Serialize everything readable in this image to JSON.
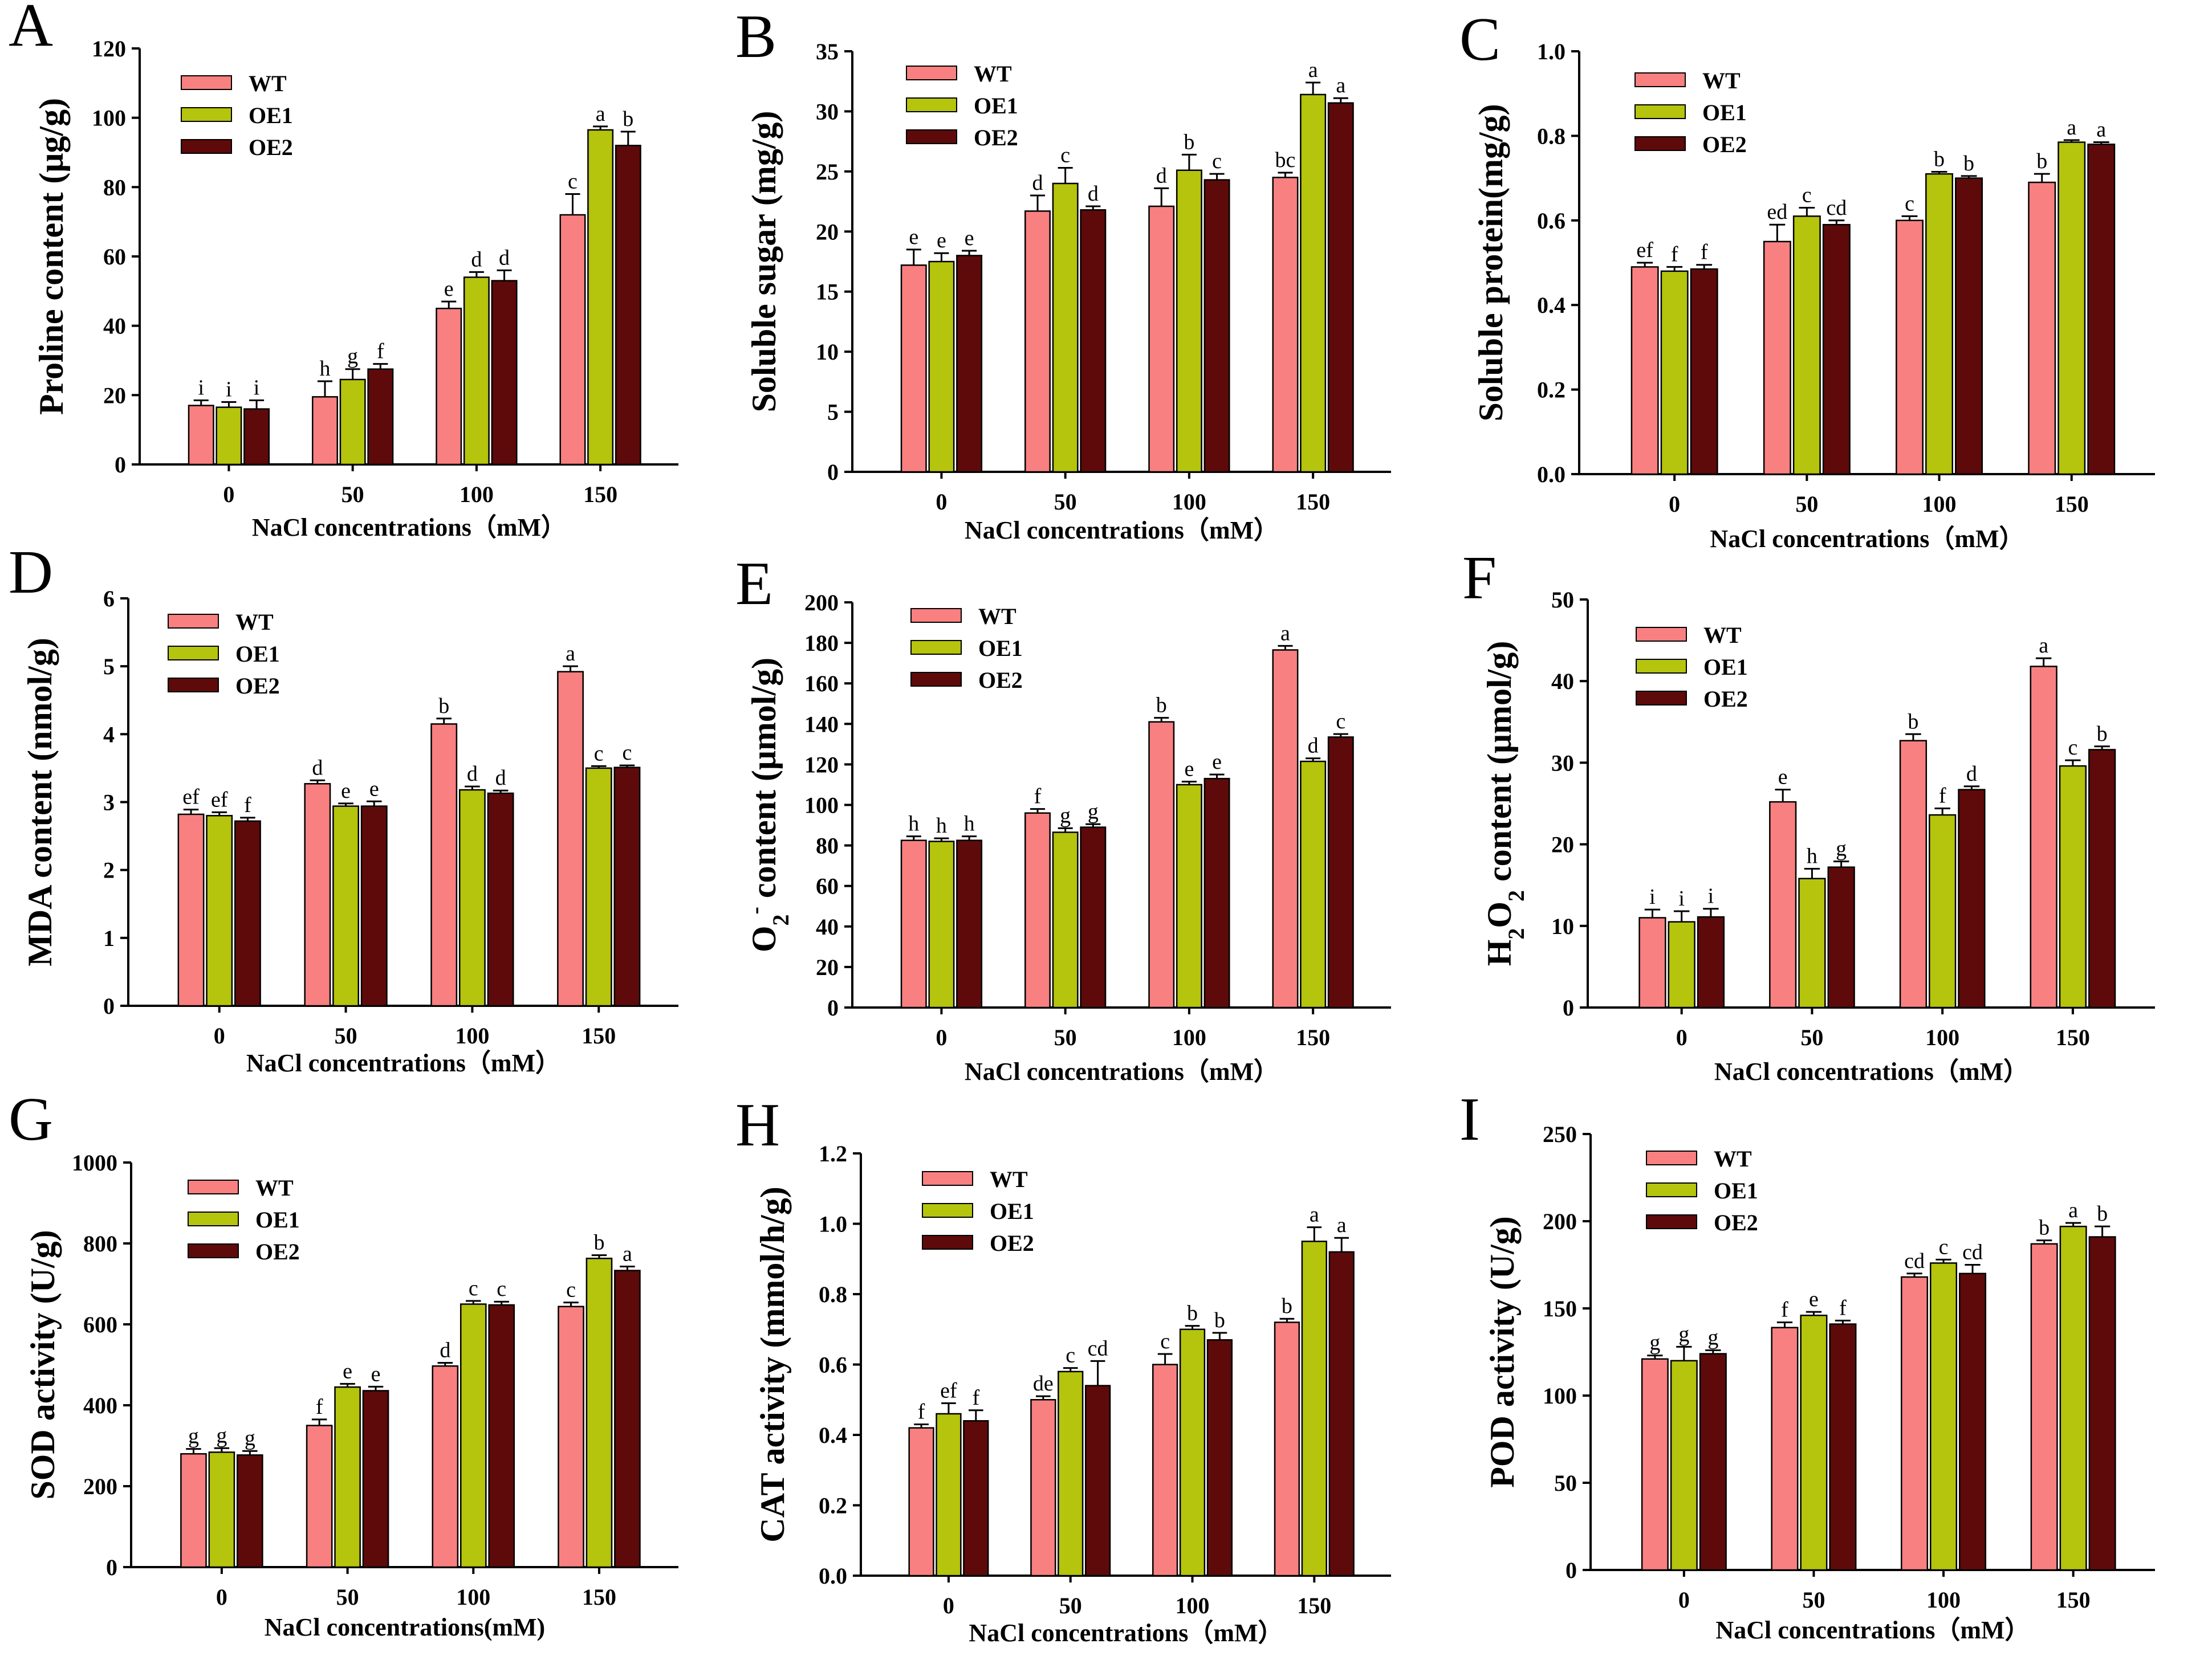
{
  "figure": {
    "series_names": [
      "WT",
      "OE1",
      "OE2"
    ],
    "colors": {
      "WT": "#F98080",
      "OE1": "#B5C40C",
      "OE2": "#5E0A0A"
    }
  },
  "chart_data": [
    {
      "panel": "A",
      "type": "bar",
      "ylabel": "Proline content (μg/g)",
      "xlabel": "NaCl concentrations（mM）",
      "ylim": [
        0,
        120
      ],
      "yticks": [
        "0",
        "20",
        "40",
        "60",
        "80",
        "100",
        "120"
      ],
      "categories": [
        "0",
        "50",
        "100",
        "150"
      ],
      "series": [
        {
          "name": "WT",
          "values": [
            17,
            19.5,
            45,
            72
          ],
          "errors": [
            1.5,
            4.5,
            2,
            6
          ],
          "labels": [
            "i",
            "h",
            "e",
            "c"
          ]
        },
        {
          "name": "OE1",
          "values": [
            16.5,
            24.5,
            54,
            96.5
          ],
          "errors": [
            1.5,
            3,
            1.5,
            1
          ],
          "labels": [
            "i",
            "g",
            "d",
            "a"
          ]
        },
        {
          "name": "OE2",
          "values": [
            16,
            27.5,
            53,
            92
          ],
          "errors": [
            2.5,
            1.5,
            3,
            4
          ],
          "labels": [
            "i",
            "f",
            "d",
            "b"
          ]
        }
      ]
    },
    {
      "panel": "B",
      "type": "bar",
      "ylabel": "Soluble sugar (mg/g)",
      "xlabel": "NaCl concentrations（mM）",
      "ylim": [
        0,
        35
      ],
      "yticks": [
        "0",
        "5",
        "10",
        "15",
        "20",
        "25",
        "30",
        "35"
      ],
      "categories": [
        "0",
        "50",
        "100",
        "150"
      ],
      "series": [
        {
          "name": "WT",
          "values": [
            17.2,
            21.7,
            22.1,
            24.5
          ],
          "errors": [
            1.3,
            1.3,
            1.5,
            0.4
          ],
          "labels": [
            "e",
            "d",
            "d",
            "bc"
          ]
        },
        {
          "name": "OE1",
          "values": [
            17.5,
            24.0,
            25.1,
            31.4
          ],
          "errors": [
            0.7,
            1.3,
            1.3,
            1.0
          ],
          "labels": [
            "e",
            "c",
            "b",
            "a"
          ]
        },
        {
          "name": "OE2",
          "values": [
            18.0,
            21.8,
            24.3,
            30.7
          ],
          "errors": [
            0.4,
            0.3,
            0.5,
            0.4
          ],
          "labels": [
            "e",
            "d",
            "c",
            "a"
          ]
        }
      ]
    },
    {
      "panel": "C",
      "type": "bar",
      "ylabel": "Soluble protein(mg/g)",
      "xlabel": "NaCl concentrations（mM）",
      "ylim": [
        0,
        1.0
      ],
      "yticks": [
        "0.0",
        "0.2",
        "0.4",
        "0.6",
        "0.8",
        "1.0"
      ],
      "categories": [
        "0",
        "50",
        "100",
        "150"
      ],
      "series": [
        {
          "name": "WT",
          "values": [
            0.49,
            0.55,
            0.6,
            0.69
          ],
          "errors": [
            0.01,
            0.04,
            0.01,
            0.02
          ],
          "labels": [
            "ef",
            "ed",
            "c",
            "b"
          ]
        },
        {
          "name": "OE1",
          "values": [
            0.48,
            0.61,
            0.71,
            0.785
          ],
          "errors": [
            0.01,
            0.02,
            0.005,
            0.005
          ],
          "labels": [
            "f",
            "c",
            "b",
            "a"
          ]
        },
        {
          "name": "OE2",
          "values": [
            0.485,
            0.59,
            0.7,
            0.78
          ],
          "errors": [
            0.01,
            0.01,
            0.005,
            0.005
          ],
          "labels": [
            "f",
            "cd",
            "b",
            "a"
          ]
        }
      ]
    },
    {
      "panel": "D",
      "type": "bar",
      "ylabel": "MDA content (nmol/g)",
      "xlabel": "NaCl concentrations（mM）",
      "ylim": [
        0,
        6
      ],
      "yticks": [
        "0",
        "1",
        "2",
        "3",
        "4",
        "5",
        "6"
      ],
      "categories": [
        "0",
        "50",
        "100",
        "150"
      ],
      "series": [
        {
          "name": "WT",
          "values": [
            2.82,
            3.27,
            4.15,
            4.92
          ],
          "errors": [
            0.07,
            0.05,
            0.08,
            0.08
          ],
          "labels": [
            "ef",
            "d",
            "b",
            "a"
          ]
        },
        {
          "name": "OE1",
          "values": [
            2.8,
            2.94,
            3.18,
            3.5
          ],
          "errors": [
            0.05,
            0.04,
            0.05,
            0.03
          ],
          "labels": [
            "ef",
            "e",
            "d",
            "c"
          ]
        },
        {
          "name": "OE2",
          "values": [
            2.72,
            2.94,
            3.13,
            3.51
          ],
          "errors": [
            0.05,
            0.07,
            0.04,
            0.03
          ],
          "labels": [
            "f",
            "e",
            "d",
            "c"
          ]
        }
      ]
    },
    {
      "panel": "E",
      "type": "bar",
      "ylabel": "O2- content (μmol/g)",
      "xlabel": "NaCl concentrations（mM）",
      "ylim": [
        0,
        200
      ],
      "yticks": [
        "0",
        "20",
        "40",
        "60",
        "80",
        "100",
        "120",
        "140",
        "160",
        "180",
        "200"
      ],
      "categories": [
        "0",
        "50",
        "100",
        "150"
      ],
      "series": [
        {
          "name": "WT",
          "values": [
            82.5,
            96,
            141,
            176.5
          ],
          "errors": [
            2,
            2,
            2,
            2
          ],
          "labels": [
            "h",
            "f",
            "b",
            "a"
          ]
        },
        {
          "name": "OE1",
          "values": [
            82,
            86.5,
            110,
            121.5
          ],
          "errors": [
            1.5,
            2,
            1.5,
            1.5
          ],
          "labels": [
            "h",
            "g",
            "e",
            "d"
          ]
        },
        {
          "name": "OE2",
          "values": [
            82.5,
            89,
            113,
            133.5
          ],
          "errors": [
            2,
            1.5,
            2,
            1.5
          ],
          "labels": [
            "h",
            "g",
            "e",
            "c"
          ]
        }
      ]
    },
    {
      "panel": "F",
      "type": "bar",
      "ylabel": "H2O2 content (μmol/g)",
      "xlabel": "NaCl concentrations（mM）",
      "ylim": [
        0,
        50
      ],
      "yticks": [
        "0",
        "10",
        "20",
        "30",
        "40",
        "50"
      ],
      "categories": [
        "0",
        "50",
        "100",
        "150"
      ],
      "series": [
        {
          "name": "WT",
          "values": [
            11,
            25.2,
            32.7,
            41.8
          ],
          "errors": [
            1,
            1.5,
            0.8,
            1
          ],
          "labels": [
            "i",
            "e",
            "b",
            "a"
          ]
        },
        {
          "name": "OE1",
          "values": [
            10.5,
            15.8,
            23.6,
            29.6
          ],
          "errors": [
            1.3,
            1.2,
            0.8,
            0.7
          ],
          "labels": [
            "i",
            "h",
            "f",
            "c"
          ]
        },
        {
          "name": "OE2",
          "values": [
            11.1,
            17.2,
            26.7,
            31.6
          ],
          "errors": [
            1,
            0.7,
            0.4,
            0.4
          ],
          "labels": [
            "i",
            "g",
            "d",
            "b"
          ]
        }
      ]
    },
    {
      "panel": "G",
      "type": "bar",
      "ylabel": "SOD activity (U/g)",
      "xlabel": "NaCl concentrations(mM)",
      "ylim": [
        0,
        1000
      ],
      "yticks": [
        "0",
        "200",
        "400",
        "600",
        "800",
        "1000"
      ],
      "categories": [
        "0",
        "50",
        "100",
        "150"
      ],
      "series": [
        {
          "name": "WT",
          "values": [
            280,
            350,
            497,
            644
          ],
          "errors": [
            12,
            15,
            8,
            10
          ],
          "labels": [
            "g",
            "f",
            "d",
            "c"
          ]
        },
        {
          "name": "OE1",
          "values": [
            284,
            445,
            650,
            763
          ],
          "errors": [
            10,
            8,
            8,
            8
          ],
          "labels": [
            "g",
            "e",
            "c",
            "b"
          ]
        },
        {
          "name": "OE2",
          "values": [
            277,
            436,
            648,
            733
          ],
          "errors": [
            10,
            10,
            8,
            10
          ],
          "labels": [
            "g",
            "e",
            "c",
            "a"
          ]
        }
      ]
    },
    {
      "panel": "H",
      "type": "bar",
      "ylabel": "CAT activity (mmol/h/g)",
      "xlabel": "NaCl concentrations（mM）",
      "ylim": [
        0,
        1.2
      ],
      "yticks": [
        "0.0",
        "0.2",
        "0.4",
        "0.6",
        "0.8",
        "1.0",
        "1.2"
      ],
      "categories": [
        "0",
        "50",
        "100",
        "150"
      ],
      "series": [
        {
          "name": "WT",
          "values": [
            0.42,
            0.5,
            0.6,
            0.72
          ],
          "errors": [
            0.01,
            0.01,
            0.03,
            0.01
          ],
          "labels": [
            "f",
            "de",
            "c",
            "b"
          ]
        },
        {
          "name": "OE1",
          "values": [
            0.46,
            0.58,
            0.7,
            0.95
          ],
          "errors": [
            0.03,
            0.01,
            0.01,
            0.04
          ],
          "labels": [
            "ef",
            "c",
            "b",
            "a"
          ]
        },
        {
          "name": "OE2",
          "values": [
            0.44,
            0.54,
            0.67,
            0.92
          ],
          "errors": [
            0.03,
            0.07,
            0.02,
            0.04
          ],
          "labels": [
            "f",
            "cd",
            "b",
            "a"
          ]
        }
      ]
    },
    {
      "panel": "I",
      "type": "bar",
      "ylabel": "POD activity (U/g)",
      "xlabel": "NaCl concentrations（mM）",
      "ylim": [
        0,
        250
      ],
      "yticks": [
        "0",
        "50",
        "100",
        "150",
        "200",
        "250"
      ],
      "categories": [
        "0",
        "50",
        "100",
        "150"
      ],
      "series": [
        {
          "name": "WT",
          "values": [
            121,
            139,
            168,
            187
          ],
          "errors": [
            2,
            3,
            2,
            2
          ],
          "labels": [
            "g",
            "f",
            "cd",
            "b"
          ]
        },
        {
          "name": "OE1",
          "values": [
            120,
            146,
            176,
            197
          ],
          "errors": [
            8,
            2,
            2,
            2
          ],
          "labels": [
            "g",
            "e",
            "c",
            "a"
          ]
        },
        {
          "name": "OE2",
          "values": [
            124,
            141,
            170,
            191
          ],
          "errors": [
            2,
            2,
            5,
            6
          ],
          "labels": [
            "g",
            "f",
            "cd",
            "b"
          ]
        }
      ]
    }
  ]
}
